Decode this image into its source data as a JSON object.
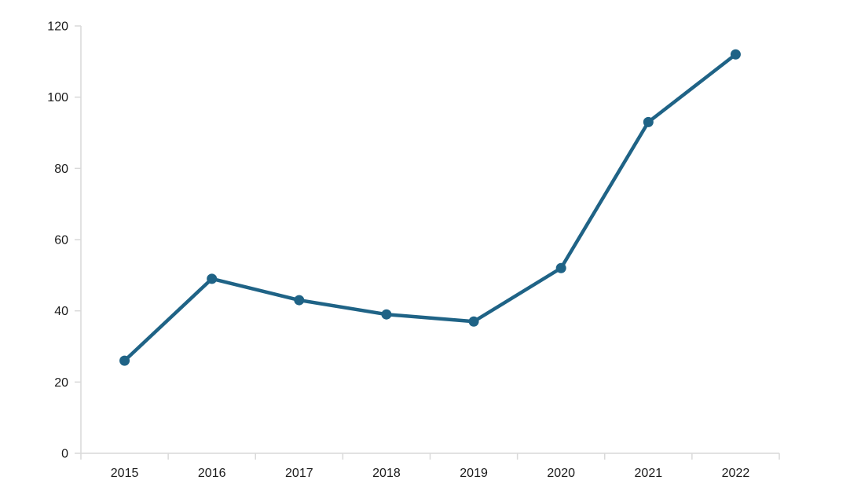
{
  "chart_data": {
    "type": "line",
    "title": "",
    "xlabel": "",
    "ylabel": "",
    "categories": [
      "2015",
      "2016",
      "2017",
      "2018",
      "2019",
      "2020",
      "2021",
      "2022"
    ],
    "values": [
      26,
      49,
      43,
      39,
      37,
      52,
      93,
      112
    ],
    "ylim": [
      0,
      120
    ],
    "ytick_step": 20,
    "ytick_labels": [
      "0",
      "20",
      "40",
      "60",
      "80",
      "100",
      "120"
    ],
    "grid": false,
    "legend": false,
    "marker": "circle",
    "line_color": "#1F6386",
    "axis_color": "#D9D9D9",
    "text_color": "#1A1A1A"
  }
}
